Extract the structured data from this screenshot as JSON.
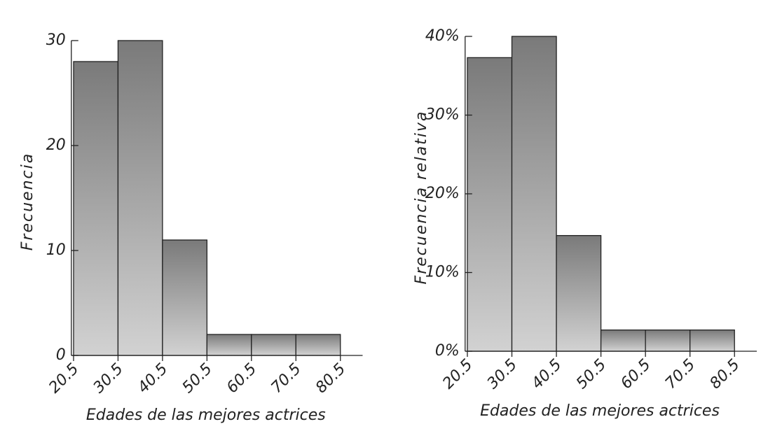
{
  "chart_data": [
    {
      "type": "histogram",
      "xlabel": "Edades de las mejores actrices",
      "ylabel": "Frecuencia",
      "bins": [
        20.5,
        30.5,
        40.5,
        50.5,
        60.5,
        70.5,
        80.5
      ],
      "values": [
        28,
        30,
        11,
        2,
        2,
        2
      ],
      "color": "#8a8a8a",
      "xlim": [
        20,
        85.5
      ],
      "ylim": [
        0,
        30
      ],
      "yticks": [
        0,
        10,
        20,
        30
      ]
    },
    {
      "type": "histogram",
      "xlabel": "Edades de las mejores actrices",
      "ylabel": "Frecuencia relativa",
      "bins": [
        20.5,
        30.5,
        40.5,
        50.5,
        60.5,
        70.5,
        80.5
      ],
      "values": [
        37.3,
        40,
        14.7,
        2.7,
        2.7,
        2.7
      ],
      "color": "#8a8a8a",
      "xlim": [
        20,
        85.5
      ],
      "ylim": [
        0,
        40
      ],
      "yticks": [
        {
          "value": 0,
          "label": "0%"
        },
        {
          "value": 10,
          "label": "10%"
        },
        {
          "value": 20,
          "label": "20%"
        },
        {
          "value": 30,
          "label": "30%"
        },
        {
          "value": 40,
          "label": "40%"
        }
      ]
    }
  ]
}
